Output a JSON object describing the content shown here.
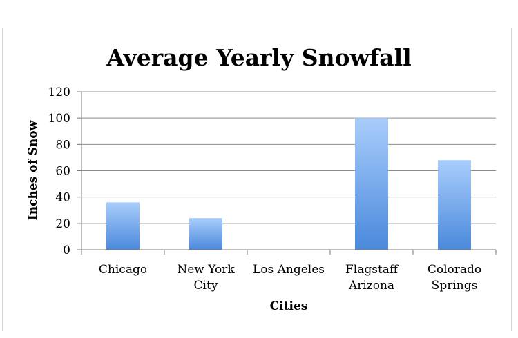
{
  "chart_data": {
    "type": "bar",
    "title": "Average Yearly Snowfall",
    "xlabel": "Cities",
    "ylabel": "Inches of Snow",
    "categories": [
      [
        "Chicago"
      ],
      [
        "New York",
        "City"
      ],
      [
        "Los Angeles"
      ],
      [
        "Flagstaff",
        "Arizona"
      ],
      [
        "Colorado",
        "Springs"
      ]
    ],
    "values": [
      36,
      24,
      0,
      100,
      68
    ],
    "ylim": [
      0,
      120
    ],
    "yticks": [
      0,
      20,
      40,
      60,
      80,
      100,
      120
    ],
    "grid": true,
    "legend": "none",
    "colors": {
      "bar_top": "#a9cdfb",
      "bar_bottom": "#4a89dc",
      "grid": "#8c8c8c",
      "axis": "#7a7a7a"
    }
  }
}
